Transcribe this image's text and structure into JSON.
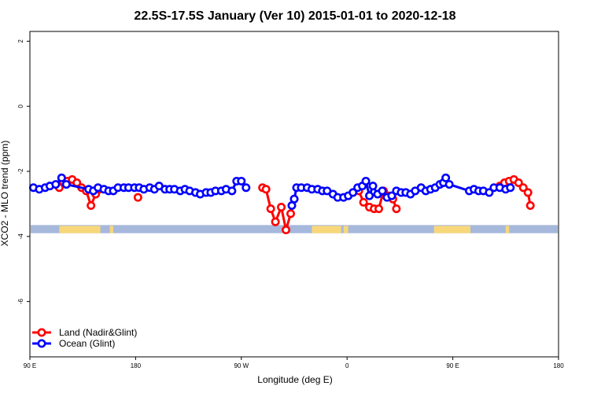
{
  "chart_data": {
    "type": "line",
    "title": "22.5S-17.5S January (Ver 10)   2015-01-01 to 2020-12-18",
    "xlabel": "Longitude (deg E)",
    "ylabel": "XCO2 - MLO trend (ppm)",
    "xlim": [
      90,
      540
    ],
    "ylim": [
      -7.7,
      2.3
    ],
    "x_ticks": [
      {
        "value": 90,
        "label": "90 E"
      },
      {
        "value": 180,
        "label": "180"
      },
      {
        "value": 270,
        "label": "90 W"
      },
      {
        "value": 360,
        "label": "0"
      },
      {
        "value": 450,
        "label": "90 E"
      },
      {
        "value": 540,
        "label": "180"
      }
    ],
    "y_ticks": [
      {
        "value": 2,
        "label": "2"
      },
      {
        "value": 0,
        "label": "0"
      },
      {
        "value": -2,
        "label": "-2"
      },
      {
        "value": -4,
        "label": "-4"
      },
      {
        "value": -6,
        "label": "-6"
      }
    ],
    "colors": {
      "land": "#ff0000",
      "ocean": "#0000ff",
      "map_ocean": "#a6b8dc",
      "map_land": "#f7d77a"
    },
    "map_strip": {
      "y_top": -3.65,
      "y_bottom": -3.9,
      "land_segments": [
        [
          115,
          150
        ],
        [
          158,
          161
        ],
        [
          330,
          355
        ],
        [
          357,
          361
        ],
        [
          434,
          465
        ],
        [
          495,
          498
        ]
      ]
    },
    "series": [
      {
        "name": "Land (Nadir&Glint)",
        "key": "land",
        "segments": [
          [
            [
              115,
              -2.5
            ],
            [
              118,
              -2.3
            ],
            [
              122,
              -2.3
            ],
            [
              126,
              -2.25
            ],
            [
              130,
              -2.35
            ],
            [
              134,
              -2.5
            ],
            [
              138,
              -2.6
            ],
            [
              142,
              -3.05
            ],
            [
              146,
              -2.7
            ],
            [
              149,
              -2.55
            ]
          ],
          [
            [
              182,
              -2.8
            ]
          ],
          [
            [
              288,
              -2.5
            ],
            [
              291,
              -2.55
            ],
            [
              295,
              -3.15
            ],
            [
              299,
              -3.55
            ],
            [
              304,
              -3.1
            ],
            [
              308,
              -3.8
            ],
            [
              312,
              -3.3
            ],
            [
              315,
              -2.85
            ]
          ],
          [
            [
              370,
              -2.6
            ],
            [
              374,
              -2.95
            ],
            [
              379,
              -3.1
            ],
            [
              383,
              -3.15
            ],
            [
              387,
              -3.15
            ],
            [
              391,
              -2.6
            ],
            [
              395,
              -2.75
            ],
            [
              399,
              -2.85
            ],
            [
              402,
              -3.15
            ]
          ],
          [
            [
              490,
              -2.45
            ],
            [
              494,
              -2.35
            ],
            [
              498,
              -2.3
            ],
            [
              502,
              -2.25
            ],
            [
              506,
              -2.35
            ],
            [
              510,
              -2.5
            ],
            [
              514,
              -2.65
            ],
            [
              516,
              -3.05
            ]
          ]
        ]
      },
      {
        "name": "Ocean (Glint)",
        "key": "ocean",
        "segments": [
          [
            [
              93,
              -2.5
            ],
            [
              98,
              -2.55
            ],
            [
              103,
              -2.5
            ],
            [
              107,
              -2.45
            ],
            [
              112,
              -2.4
            ],
            [
              117,
              -2.2
            ],
            [
              121,
              -2.4
            ],
            [
              140,
              -2.55
            ],
            [
              144,
              -2.6
            ],
            [
              148,
              -2.5
            ],
            [
              153,
              -2.55
            ],
            [
              157,
              -2.6
            ],
            [
              161,
              -2.6
            ],
            [
              165,
              -2.5
            ],
            [
              170,
              -2.5
            ],
            [
              174,
              -2.5
            ],
            [
              179,
              -2.5
            ],
            [
              183,
              -2.5
            ],
            [
              187,
              -2.55
            ],
            [
              192,
              -2.5
            ],
            [
              196,
              -2.55
            ],
            [
              200,
              -2.45
            ],
            [
              205,
              -2.55
            ],
            [
              209,
              -2.55
            ],
            [
              213,
              -2.55
            ],
            [
              218,
              -2.6
            ],
            [
              222,
              -2.55
            ],
            [
              226,
              -2.6
            ],
            [
              231,
              -2.65
            ],
            [
              235,
              -2.7
            ],
            [
              240,
              -2.65
            ],
            [
              244,
              -2.65
            ],
            [
              248,
              -2.6
            ],
            [
              253,
              -2.6
            ],
            [
              257,
              -2.55
            ],
            [
              262,
              -2.6
            ],
            [
              266,
              -2.3
            ],
            [
              270,
              -2.3
            ],
            [
              274,
              -2.5
            ]
          ],
          [
            [
              313,
              -3.05
            ],
            [
              315,
              -2.85
            ],
            [
              317,
              -2.5
            ],
            [
              321,
              -2.5
            ],
            [
              326,
              -2.5
            ],
            [
              330,
              -2.55
            ],
            [
              335,
              -2.55
            ],
            [
              339,
              -2.6
            ],
            [
              343,
              -2.6
            ],
            [
              348,
              -2.7
            ],
            [
              352,
              -2.8
            ],
            [
              357,
              -2.8
            ],
            [
              361,
              -2.75
            ],
            [
              365,
              -2.65
            ],
            [
              369,
              -2.5
            ],
            [
              373,
              -2.45
            ],
            [
              376,
              -2.3
            ],
            [
              379,
              -2.75
            ],
            [
              382,
              -2.45
            ],
            [
              386,
              -2.7
            ],
            [
              390,
              -2.6
            ],
            [
              394,
              -2.8
            ],
            [
              398,
              -2.75
            ],
            [
              402,
              -2.6
            ],
            [
              406,
              -2.65
            ],
            [
              410,
              -2.65
            ],
            [
              414,
              -2.7
            ],
            [
              418,
              -2.6
            ],
            [
              423,
              -2.5
            ],
            [
              427,
              -2.6
            ],
            [
              431,
              -2.55
            ],
            [
              435,
              -2.5
            ],
            [
              439,
              -2.4
            ],
            [
              442,
              -2.35
            ],
            [
              444,
              -2.2
            ],
            [
              447,
              -2.4
            ],
            [
              464,
              -2.6
            ],
            [
              468,
              -2.55
            ],
            [
              472,
              -2.6
            ],
            [
              476,
              -2.6
            ],
            [
              481,
              -2.65
            ],
            [
              485,
              -2.5
            ],
            [
              490,
              -2.5
            ],
            [
              495,
              -2.55
            ],
            [
              499,
              -2.5
            ]
          ]
        ]
      }
    ],
    "legend": {
      "position": "bottom-left",
      "entries": [
        "Land (Nadir&Glint)",
        "Ocean (Glint)"
      ]
    }
  }
}
